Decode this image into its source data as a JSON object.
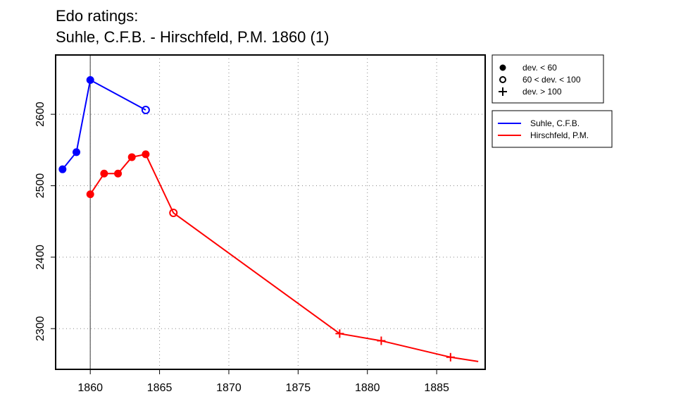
{
  "title_line1": "Edo ratings:",
  "title_line2": "Suhle, C.F.B. - Hirschfeld, P.M. 1860 (1)",
  "chart_data": {
    "type": "line",
    "xlim": [
      1857.5,
      1888.5
    ],
    "ylim": [
      2243,
      2683
    ],
    "x_ticks": [
      1860,
      1865,
      1870,
      1875,
      1880,
      1885
    ],
    "y_ticks": [
      2300,
      2400,
      2500,
      2600
    ],
    "grid": true,
    "vertical_marker": 1860,
    "legend_markers": [
      {
        "symbol": "filled-circle",
        "label": "dev. < 60"
      },
      {
        "symbol": "open-circle",
        "label": "60 < dev. < 100"
      },
      {
        "symbol": "plus",
        "label": "dev. > 100"
      }
    ],
    "series": [
      {
        "name": "Suhle, C.F.B.",
        "color": "#0000ff",
        "points": [
          {
            "x": 1858,
            "y": 2523,
            "marker": "filled-circle"
          },
          {
            "x": 1859,
            "y": 2547,
            "marker": "filled-circle"
          },
          {
            "x": 1860,
            "y": 2648,
            "marker": "filled-circle"
          },
          {
            "x": 1864,
            "y": 2606,
            "marker": "open-circle"
          }
        ]
      },
      {
        "name": "Hirschfeld, P.M.",
        "color": "#ff0000",
        "points": [
          {
            "x": 1860,
            "y": 2488,
            "marker": "filled-circle"
          },
          {
            "x": 1861,
            "y": 2517,
            "marker": "filled-circle"
          },
          {
            "x": 1862,
            "y": 2517,
            "marker": "filled-circle"
          },
          {
            "x": 1863,
            "y": 2540,
            "marker": "filled-circle"
          },
          {
            "x": 1864,
            "y": 2544,
            "marker": "filled-circle"
          },
          {
            "x": 1866,
            "y": 2462,
            "marker": "open-circle"
          },
          {
            "x": 1878,
            "y": 2293,
            "marker": "plus"
          },
          {
            "x": 1881,
            "y": 2283,
            "marker": "plus"
          },
          {
            "x": 1886,
            "y": 2260,
            "marker": "plus"
          },
          {
            "x": 1888,
            "y": 2254,
            "marker": "none"
          }
        ]
      }
    ]
  }
}
